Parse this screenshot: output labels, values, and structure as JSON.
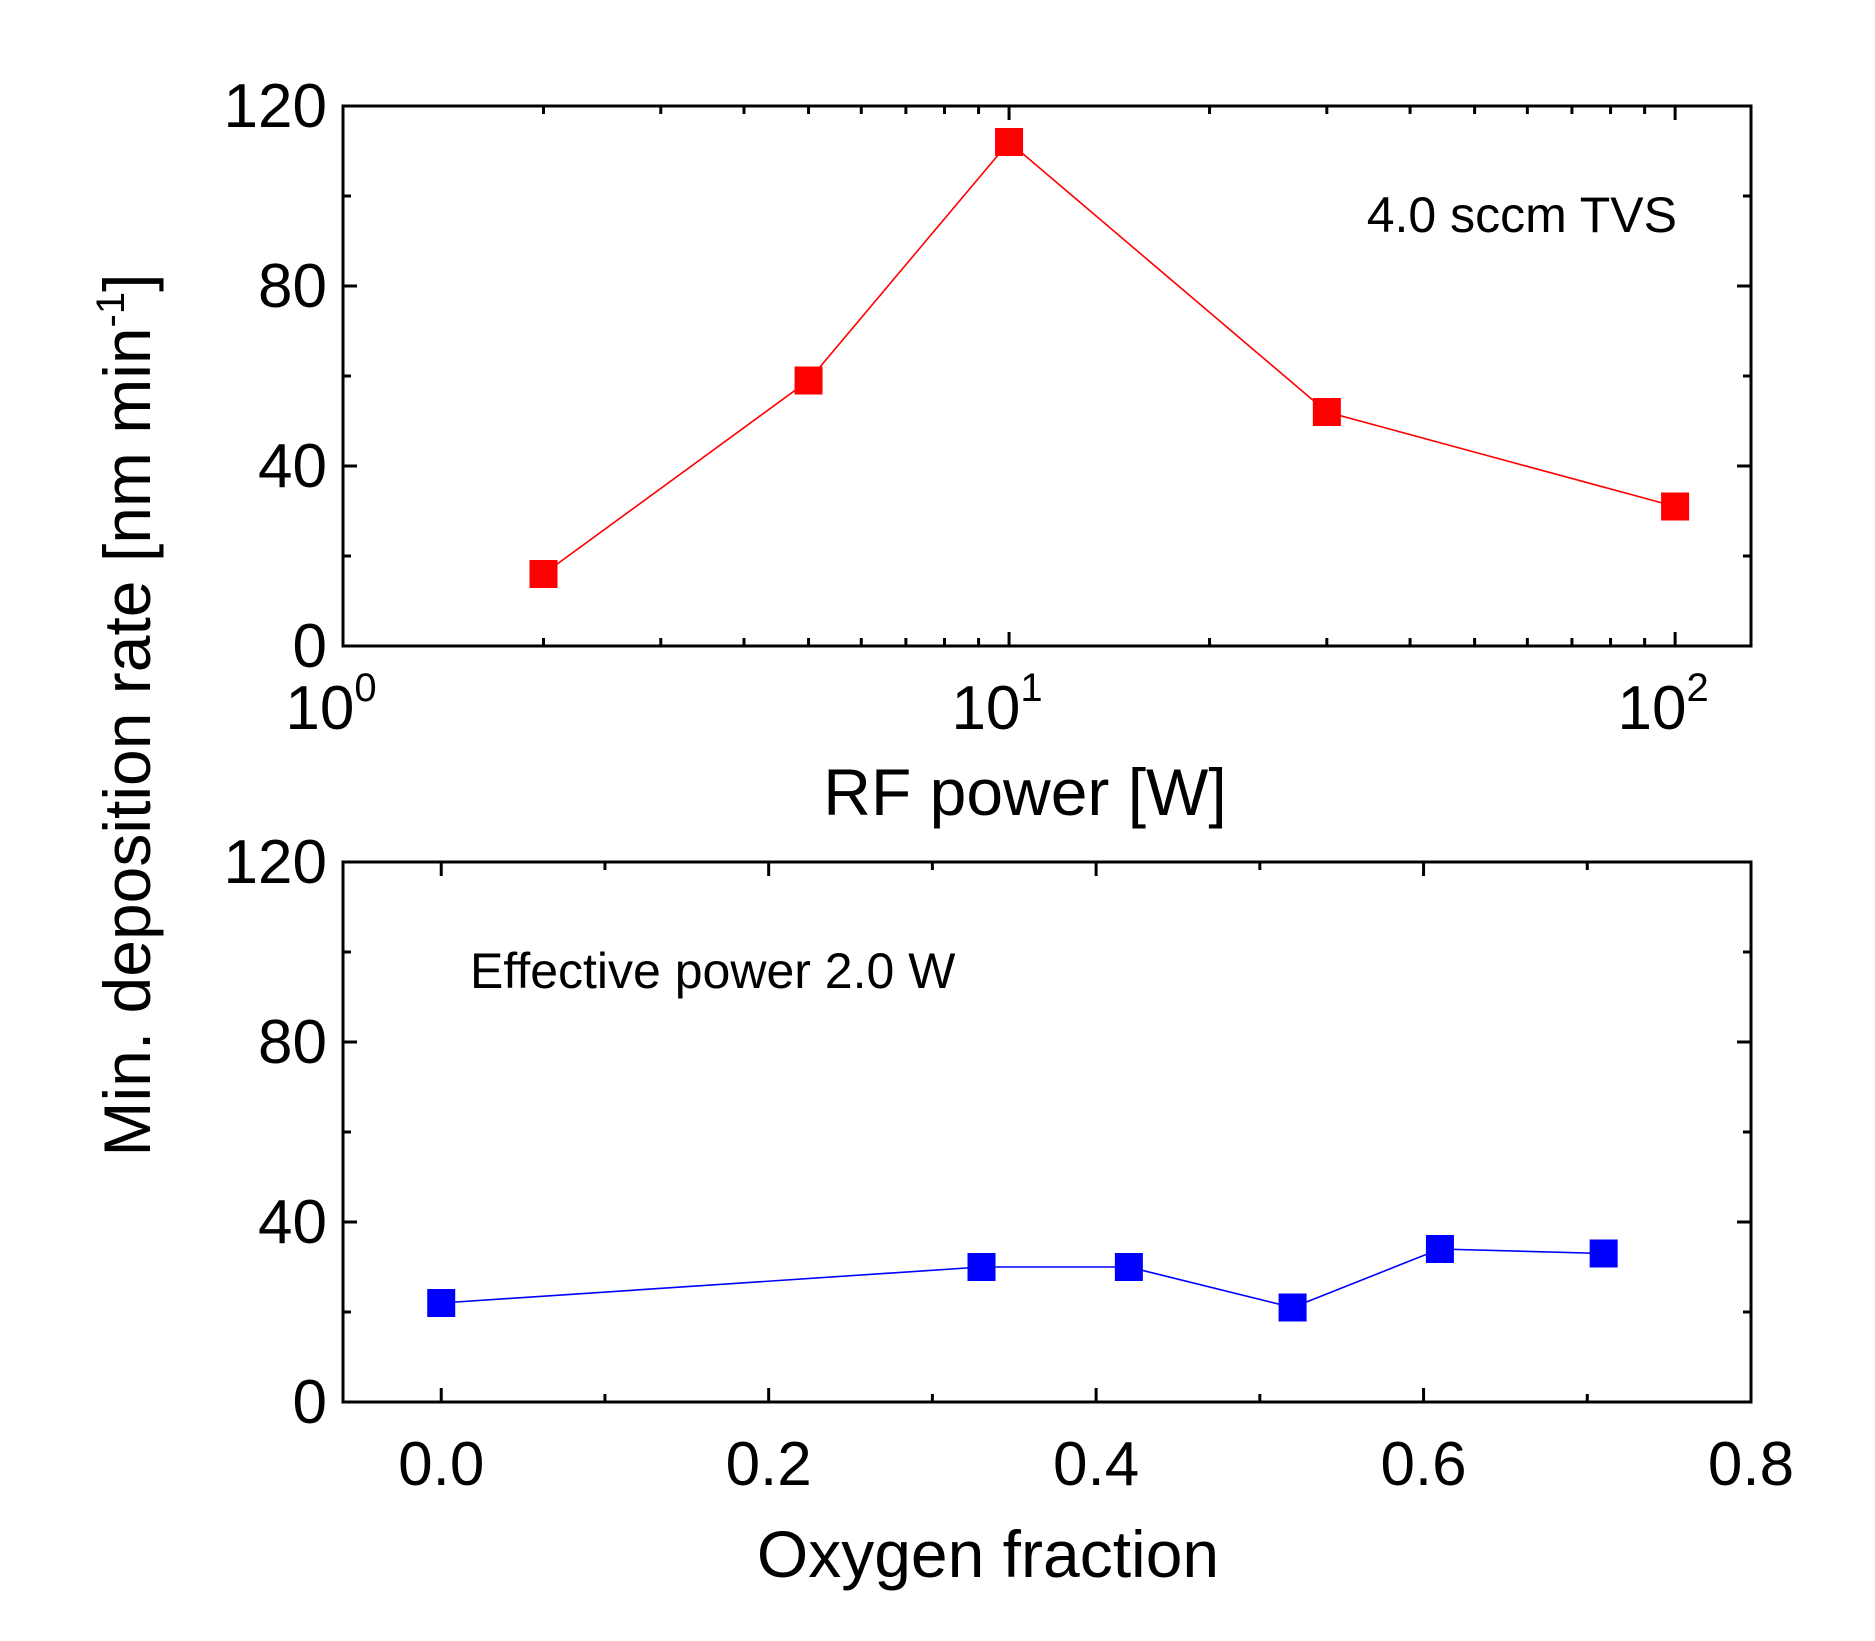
{
  "shared_ylabel": "Min. deposition rate [nm min",
  "shared_ylabel_sup": "-1",
  "shared_ylabel_close": "]",
  "chart_data": [
    {
      "type": "line",
      "xscale": "log",
      "xlim": [
        1,
        130
      ],
      "ylim": [
        0,
        120
      ],
      "xlabel": "RF power [W]",
      "yticks": [
        0,
        40,
        80,
        120
      ],
      "xticks": [
        {
          "value": 1,
          "base": "10",
          "exp": "0"
        },
        {
          "value": 10,
          "base": "10",
          "exp": "1"
        },
        {
          "value": 100,
          "base": "10",
          "exp": "2"
        }
      ],
      "annotation": "4.0 sccm TVS",
      "annotation_position": "top-right",
      "grid": false,
      "series": [
        {
          "color": "#ff0000",
          "marker": "square",
          "x": [
            2,
            5,
            10,
            30,
            100
          ],
          "y": [
            16,
            59,
            112,
            52,
            31
          ]
        }
      ]
    },
    {
      "type": "line",
      "xscale": "linear",
      "xlim": [
        -0.06,
        0.8
      ],
      "ylim": [
        0,
        120
      ],
      "xlabel": "Oxygen fraction",
      "yticks": [
        0,
        40,
        80,
        120
      ],
      "xticks": [
        {
          "value": 0,
          "label": "0.0"
        },
        {
          "value": 0.2,
          "label": "0.2"
        },
        {
          "value": 0.4,
          "label": "0.4"
        },
        {
          "value": 0.6,
          "label": "0.6"
        },
        {
          "value": 0.8,
          "label": "0.8"
        }
      ],
      "annotation": "Effective power 2.0 W",
      "annotation_position": "top-left",
      "grid": false,
      "series": [
        {
          "color": "#0000ff",
          "marker": "square",
          "x": [
            0.0,
            0.33,
            0.42,
            0.52,
            0.61,
            0.71
          ],
          "y": [
            22,
            30,
            30,
            21,
            34,
            33
          ]
        }
      ]
    }
  ]
}
